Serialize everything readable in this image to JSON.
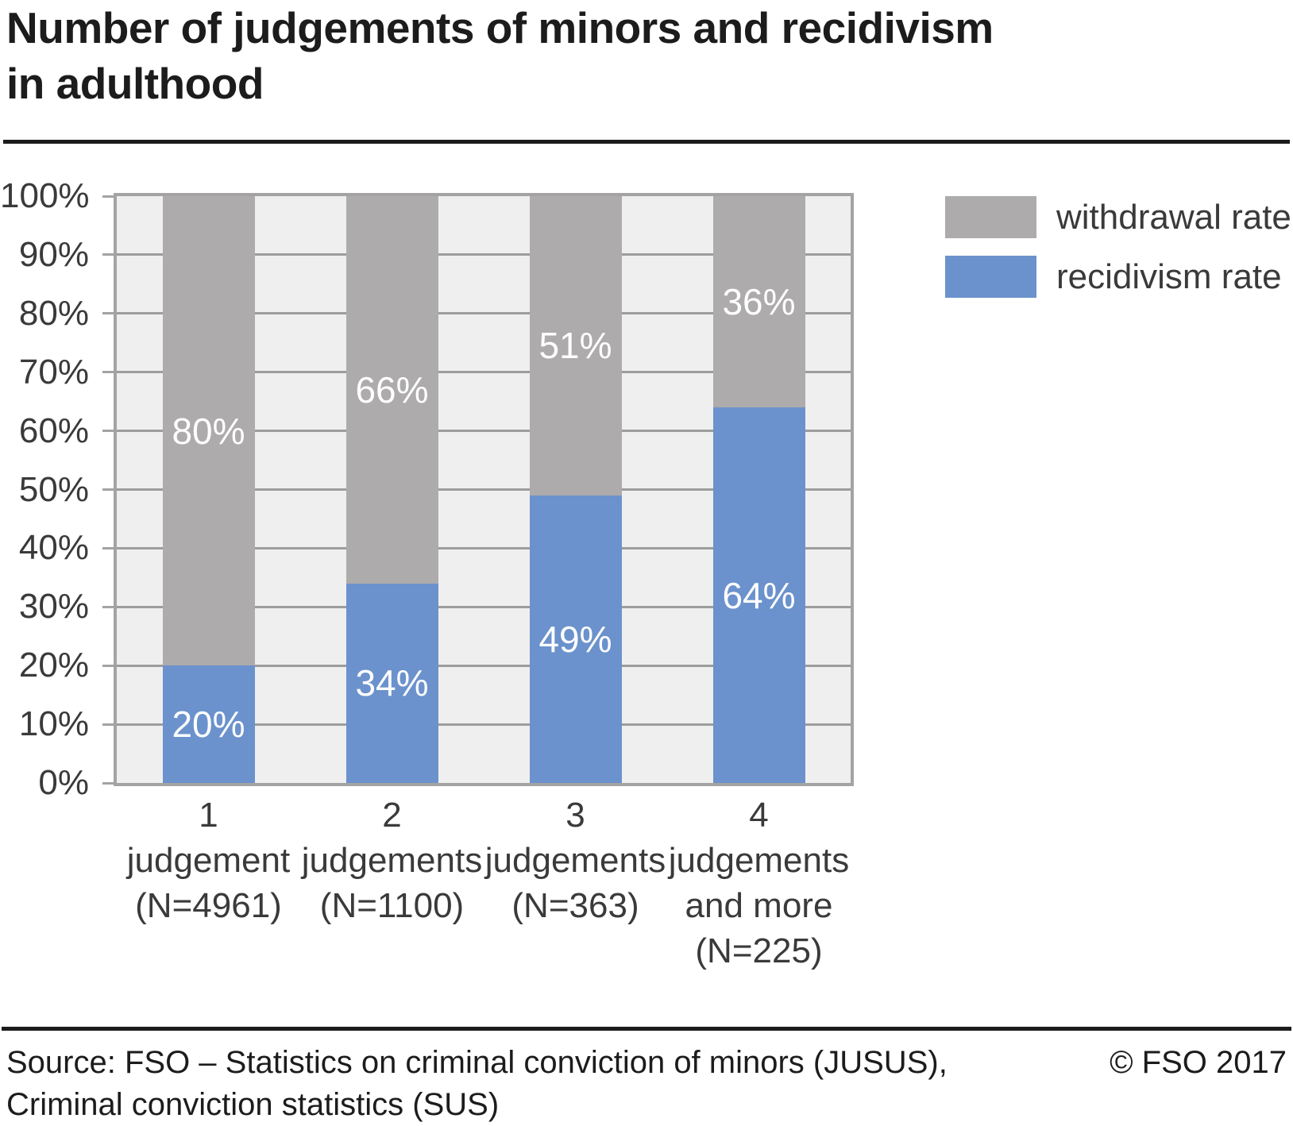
{
  "title": {
    "line1": "Number of judgements of minors and recidivism",
    "line2": "in adulthood"
  },
  "legend": [
    {
      "label": "withdrawal rate",
      "color": "#adabab"
    },
    {
      "label": "recidivism rate",
      "color": "#6b92cc"
    }
  ],
  "footer": {
    "source_line1": "Source: FSO – Statistics on criminal conviction of minors (JUSUS),",
    "source_line2": "Criminal conviction statistics (SUS)",
    "copyright": "© FSO 2017"
  },
  "chart_data": {
    "type": "bar",
    "stacked": true,
    "title": "Number of judgements of minors and recidivism in adulthood",
    "categories": [
      "1 judgement (N=4961)",
      "2 judgements (N=1100)",
      "3 judgements (N=363)",
      "4 judgements and more (N=225)"
    ],
    "category_lines": [
      [
        "1",
        "judgement",
        "(N=4961)"
      ],
      [
        "2",
        "judgements",
        "(N=1100)"
      ],
      [
        "3",
        "judgements",
        "(N=363)"
      ],
      [
        "4",
        "judgements",
        "and more",
        "(N=225)"
      ]
    ],
    "series": [
      {
        "name": "recidivism rate",
        "color": "#6b92cc",
        "values": [
          20,
          34,
          49,
          64
        ]
      },
      {
        "name": "withdrawal rate",
        "color": "#adabab",
        "values": [
          80,
          66,
          51,
          36
        ]
      }
    ],
    "value_label_unit": "%",
    "xlabel": "",
    "ylabel": "",
    "ylim": [
      0,
      100
    ],
    "y_ticks": [
      "0%",
      "10%",
      "20%",
      "30%",
      "40%",
      "50%",
      "60%",
      "70%",
      "80%",
      "90%",
      "100%"
    ],
    "grid": "horizontal",
    "legend_position": "top-right",
    "plot_bg": "#f0efef"
  }
}
